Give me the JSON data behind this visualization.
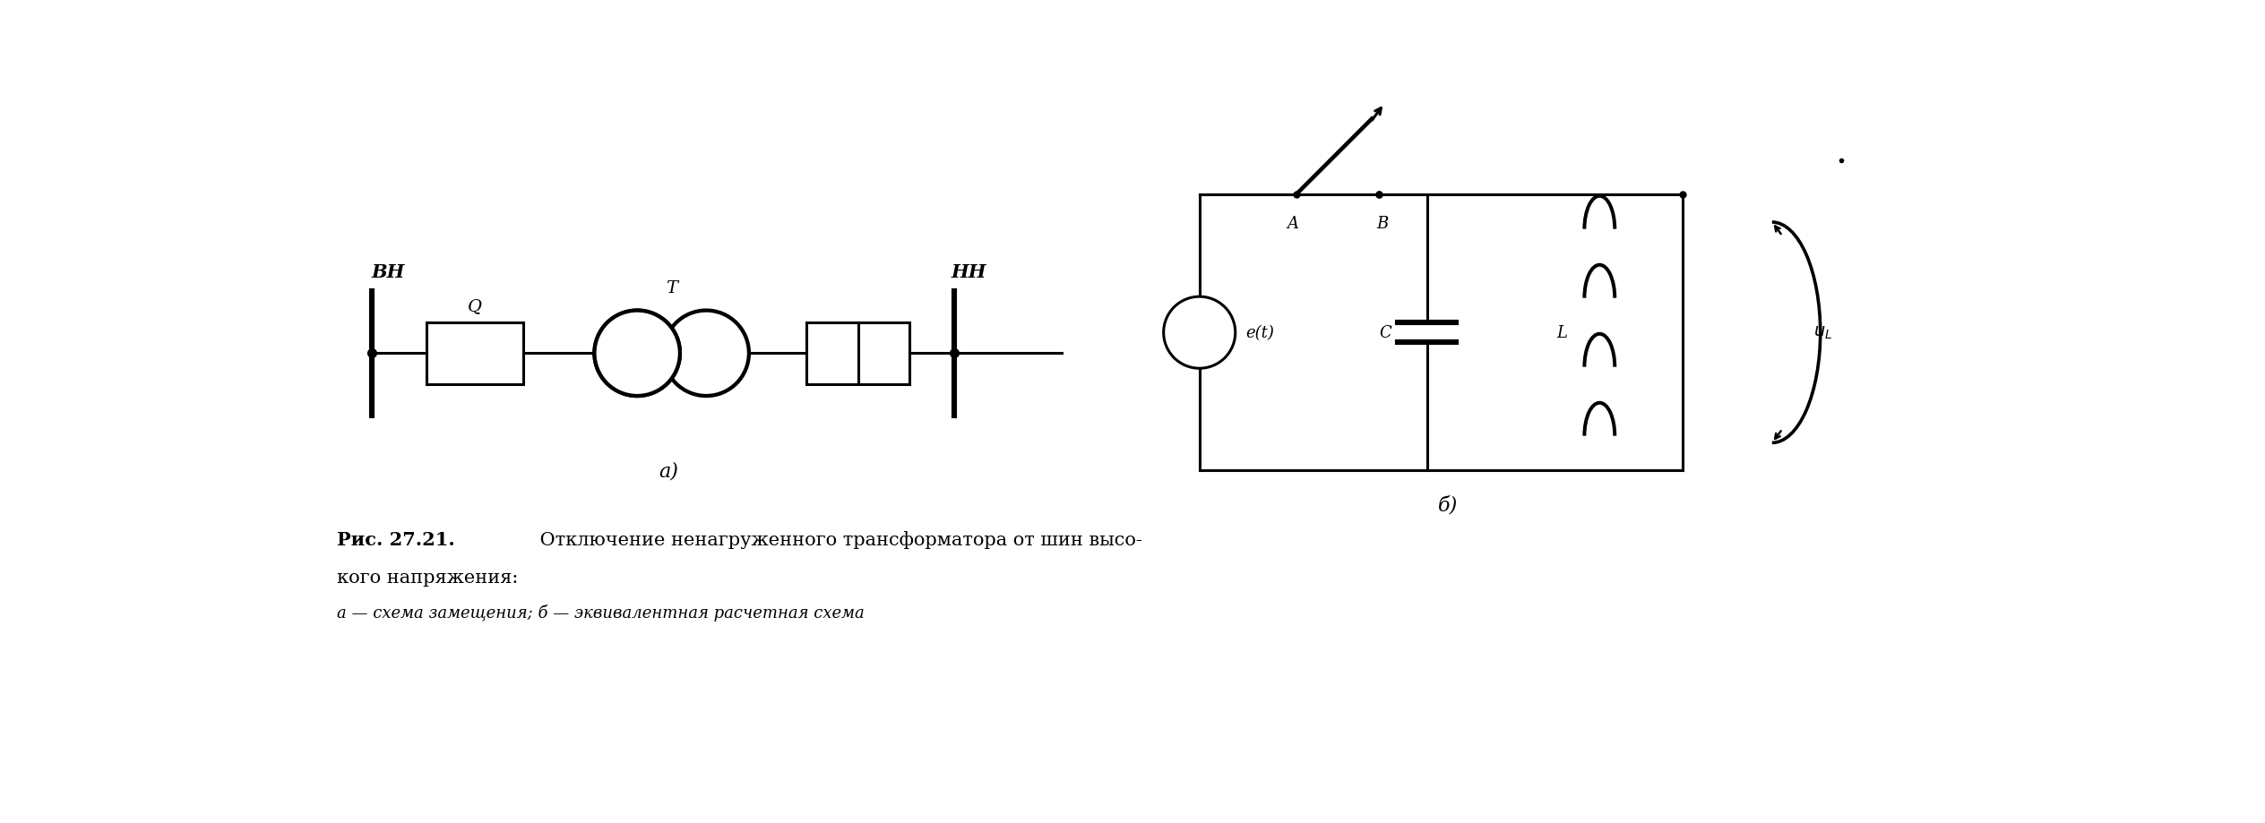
{
  "title_line1": "Рис. 27.21. Отключение ненагруженного трансформатора от шин высо-",
  "title_line2": "кого напряжения:",
  "title_line3": "а — схема замещения; б — эквивалентная расчетная схема",
  "label_VH": "ВН",
  "label_NH": "НН",
  "label_Q": "Q",
  "label_T": "T",
  "label_a": "а)",
  "label_b": "б)",
  "label_A": "A",
  "label_B": "B",
  "label_C": "C",
  "label_L": "L",
  "label_et": "e(t)",
  "label_uL": "u_L",
  "lw": 2.2,
  "bg_color": "#ffffff"
}
